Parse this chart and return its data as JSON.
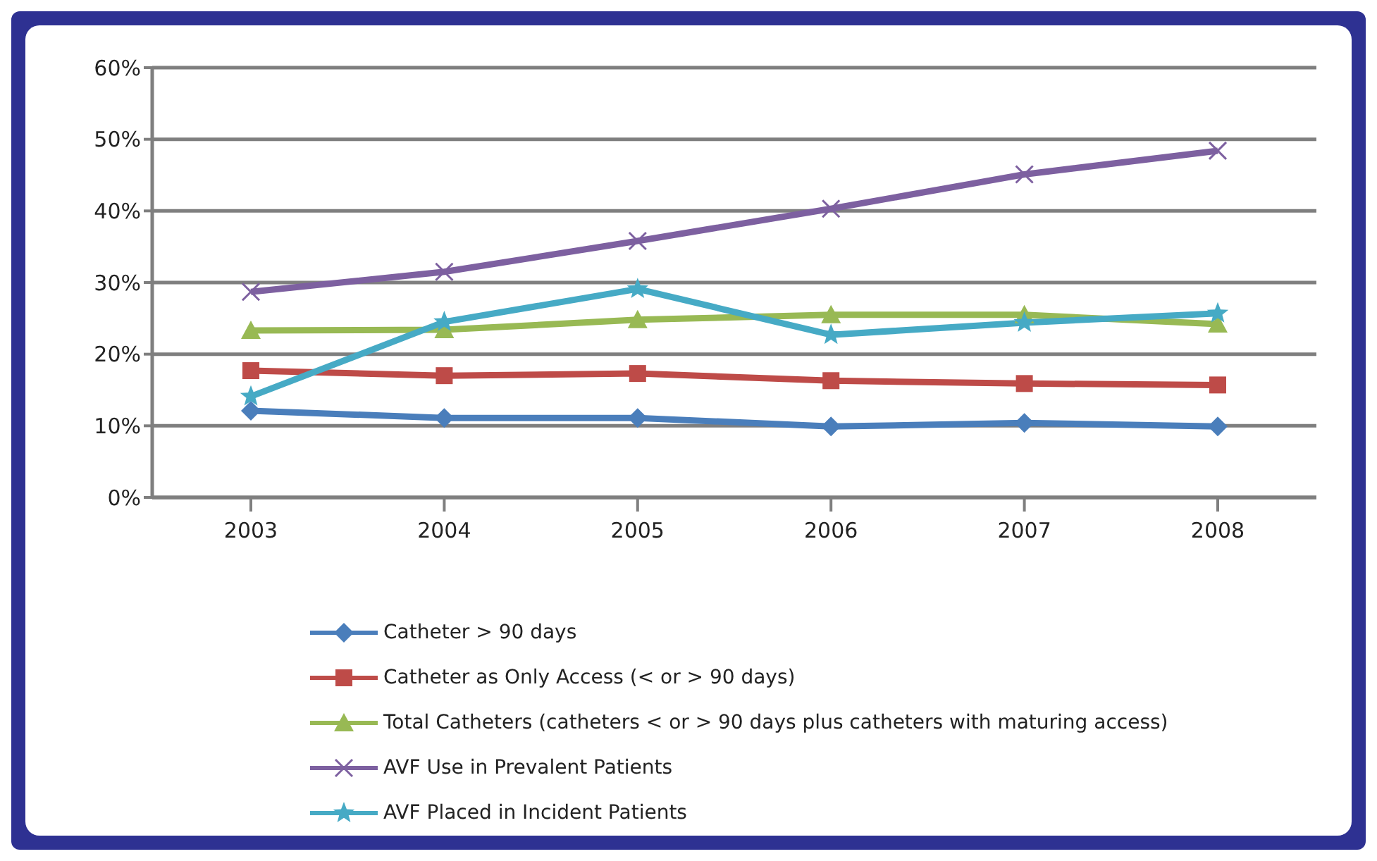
{
  "chart_data": {
    "type": "line",
    "categories": [
      "2003",
      "2004",
      "2005",
      "2006",
      "2007",
      "2008"
    ],
    "series": [
      {
        "name": "Catheter > 90 days",
        "color": "#4a7ebb",
        "marker": "diamond",
        "values": [
          12.1,
          11.1,
          11.1,
          9.9,
          10.4,
          9.9
        ]
      },
      {
        "name": "Catheter as Only Access (< or > 90 days)",
        "color": "#be4b48",
        "marker": "square",
        "values": [
          17.7,
          17,
          17.3,
          16.3,
          15.9,
          15.7
        ]
      },
      {
        "name": "Total Catheters (catheters < or > 90 days plus catheters with maturing access)",
        "color": "#98b954",
        "marker": "triangle",
        "values": [
          23.3,
          23.4,
          24.8,
          25.5,
          25.5,
          24.2
        ]
      },
      {
        "name": "AVF Use in Prevalent Patients",
        "color": "#7d60a0",
        "marker": "cross",
        "values": [
          28.7,
          31.5,
          35.8,
          40.3,
          45.1,
          48.4
        ]
      },
      {
        "name": "AVF Placed in Incident Patients",
        "color": "#46aac5",
        "marker": "star",
        "values": [
          14.1,
          24.5,
          29.1,
          22.7,
          24.4,
          25.7
        ]
      }
    ],
    "ylim": [
      0,
      60
    ],
    "yticks": [
      {
        "value": 0,
        "label": "0%"
      },
      {
        "value": 10,
        "label": "10%"
      },
      {
        "value": 20,
        "label": "20%"
      },
      {
        "value": 30,
        "label": "30%"
      },
      {
        "value": 40,
        "label": "40%"
      },
      {
        "value": 50,
        "label": "50%"
      },
      {
        "value": 60,
        "label": "60%"
      }
    ],
    "grid": "y",
    "legend": "bottom",
    "line_style": "solid"
  }
}
